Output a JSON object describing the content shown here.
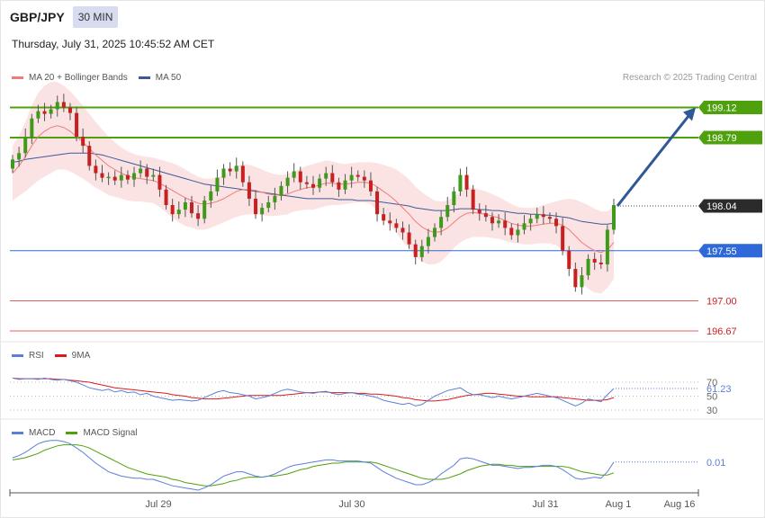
{
  "header": {
    "symbol": "GBP/JPY",
    "timeframe": "30 MIN",
    "datetime": "Thursday, July 31, 2025 10:45:52 AM CET",
    "credit": "Research © 2025 Trading Central"
  },
  "colors": {
    "ma20": "#f07b7b",
    "bands": "#fcdede",
    "ma50": "#3c5a9a",
    "resistance": "#4ea00c",
    "support_blue": "#2f68d8",
    "support_red": "#e06060",
    "current": "#333333",
    "arrow": "#2f5896",
    "rsi": "#5b7fd8",
    "rsi_ma": "#dd1a1a",
    "macd": "#5b7fd8",
    "macd_signal": "#4ea00c",
    "candle_up": "#3e9a1a",
    "candle_down": "#c62020"
  },
  "chart_data": [
    {
      "type": "candlestick",
      "legend": [
        {
          "name": "MA 20 + Bollinger Bands",
          "color": "#f07b7b"
        },
        {
          "name": "MA 50",
          "color": "#3c5a9a"
        }
      ],
      "ylim": [
        196.5,
        199.6
      ],
      "x_ticks": [
        "Jul 29",
        "Jul 30",
        "Jul 31",
        "Aug 1",
        "Aug 16"
      ],
      "levels": [
        {
          "value": 199.12,
          "label": "199.12",
          "kind": "resistance"
        },
        {
          "value": 198.79,
          "label": "198.79",
          "kind": "resistance"
        },
        {
          "value": 198.04,
          "label": "198.04",
          "kind": "current"
        },
        {
          "value": 197.55,
          "label": "197.55",
          "kind": "support_blue"
        },
        {
          "value": 197.0,
          "label": "197.00",
          "kind": "support_red"
        },
        {
          "value": 196.67,
          "label": "196.67",
          "kind": "support_red"
        }
      ],
      "close": [
        198.55,
        198.62,
        198.8,
        199.0,
        199.08,
        199.05,
        199.1,
        199.18,
        199.12,
        199.06,
        198.8,
        198.7,
        198.48,
        198.4,
        198.35,
        198.36,
        198.32,
        198.38,
        198.33,
        198.4,
        198.45,
        198.36,
        198.38,
        198.22,
        198.05,
        197.95,
        198.0,
        198.08,
        197.96,
        197.9,
        198.1,
        198.2,
        198.35,
        198.45,
        198.42,
        198.48,
        198.3,
        198.12,
        197.95,
        198.02,
        198.08,
        198.15,
        198.26,
        198.35,
        198.42,
        198.3,
        198.28,
        198.24,
        198.34,
        198.4,
        198.3,
        198.22,
        198.32,
        198.38,
        198.36,
        198.32,
        198.2,
        197.95,
        197.88,
        197.85,
        197.8,
        197.75,
        197.62,
        197.48,
        197.6,
        197.7,
        197.8,
        197.92,
        198.05,
        198.2,
        198.38,
        198.22,
        198.0,
        197.96,
        197.92,
        197.85,
        197.88,
        197.8,
        197.72,
        197.78,
        197.85,
        197.9,
        197.95,
        197.92,
        197.9,
        197.82,
        197.55,
        197.35,
        197.15,
        197.28,
        197.46,
        197.42,
        197.4,
        197.78,
        198.05
      ],
      "open": [
        198.45,
        198.55,
        198.62,
        198.8,
        199.0,
        199.08,
        199.05,
        199.1,
        199.18,
        199.12,
        199.06,
        198.8,
        198.7,
        198.48,
        198.4,
        198.35,
        198.36,
        198.32,
        198.38,
        198.33,
        198.4,
        198.45,
        198.36,
        198.38,
        198.22,
        198.05,
        197.95,
        198.0,
        198.08,
        197.96,
        197.9,
        198.1,
        198.2,
        198.35,
        198.45,
        198.42,
        198.48,
        198.3,
        198.12,
        197.95,
        198.02,
        198.08,
        198.15,
        198.26,
        198.35,
        198.42,
        198.3,
        198.28,
        198.24,
        198.34,
        198.4,
        198.3,
        198.22,
        198.32,
        198.38,
        198.36,
        198.32,
        198.2,
        197.95,
        197.88,
        197.85,
        197.8,
        197.75,
        197.62,
        197.48,
        197.6,
        197.7,
        197.8,
        197.92,
        198.05,
        198.2,
        198.38,
        198.22,
        198.0,
        197.96,
        197.92,
        197.85,
        197.88,
        197.8,
        197.72,
        197.78,
        197.85,
        197.9,
        197.95,
        197.92,
        197.9,
        197.82,
        197.55,
        197.35,
        197.15,
        197.28,
        197.46,
        197.42,
        197.4,
        197.78
      ],
      "ma20": [
        198.4,
        198.48,
        198.58,
        198.7,
        198.8,
        198.86,
        198.9,
        198.92,
        198.9,
        198.86,
        198.8,
        198.74,
        198.67,
        198.6,
        198.54,
        198.48,
        198.44,
        198.4,
        198.37,
        198.35,
        198.34,
        198.33,
        198.32,
        198.29,
        198.25,
        198.21,
        198.17,
        198.13,
        198.1,
        198.07,
        198.06,
        198.07,
        198.09,
        198.12,
        198.16,
        198.2,
        198.22,
        198.22,
        198.21,
        198.19,
        198.17,
        198.16,
        198.16,
        198.17,
        198.2,
        198.22,
        198.24,
        198.25,
        198.27,
        198.29,
        198.29,
        198.28,
        198.28,
        198.29,
        198.3,
        198.3,
        198.29,
        198.25,
        198.2,
        198.15,
        198.09,
        198.02,
        197.95,
        197.87,
        197.81,
        197.77,
        197.75,
        197.76,
        197.8,
        197.86,
        197.92,
        197.96,
        197.97,
        197.96,
        197.95,
        197.93,
        197.91,
        197.88,
        197.85,
        197.83,
        197.82,
        197.82,
        197.83,
        197.84,
        197.85,
        197.85,
        197.83,
        197.78,
        197.71,
        197.64,
        197.59,
        197.55,
        197.53,
        197.56,
        197.64
      ],
      "ma50": [
        198.52,
        198.53,
        198.55,
        198.56,
        198.57,
        198.58,
        198.59,
        198.6,
        198.61,
        198.62,
        198.62,
        198.62,
        198.62,
        198.61,
        198.6,
        198.58,
        198.56,
        198.54,
        198.52,
        198.5,
        198.48,
        198.46,
        198.44,
        198.42,
        198.4,
        198.38,
        198.36,
        198.34,
        198.32,
        198.3,
        198.28,
        198.27,
        198.26,
        198.25,
        198.24,
        198.23,
        198.22,
        198.21,
        198.2,
        198.19,
        198.18,
        198.17,
        198.16,
        198.15,
        198.14,
        198.13,
        198.12,
        198.12,
        198.12,
        198.12,
        198.12,
        198.11,
        198.11,
        198.11,
        198.1,
        198.1,
        198.1,
        198.09,
        198.08,
        198.07,
        198.06,
        198.05,
        198.04,
        198.02,
        198.01,
        198.0,
        197.99,
        197.99,
        197.99,
        198.0,
        198.01,
        198.01,
        198.01,
        198.0,
        198.0,
        197.99,
        197.99,
        197.98,
        197.97,
        197.96,
        197.96,
        197.95,
        197.95,
        197.94,
        197.94,
        197.93,
        197.92,
        197.91,
        197.89,
        197.87,
        197.86,
        197.85,
        197.84,
        197.84,
        197.85
      ],
      "band_width": [
        0.3,
        0.33,
        0.38,
        0.44,
        0.48,
        0.5,
        0.5,
        0.48,
        0.46,
        0.44,
        0.42,
        0.4,
        0.38,
        0.36,
        0.34,
        0.32,
        0.3,
        0.28,
        0.27,
        0.26,
        0.25,
        0.25,
        0.25,
        0.26,
        0.28,
        0.3,
        0.31,
        0.31,
        0.3,
        0.29,
        0.28,
        0.27,
        0.26,
        0.26,
        0.27,
        0.28,
        0.28,
        0.27,
        0.26,
        0.25,
        0.24,
        0.23,
        0.22,
        0.22,
        0.22,
        0.23,
        0.24,
        0.25,
        0.25,
        0.25,
        0.24,
        0.23,
        0.22,
        0.22,
        0.22,
        0.22,
        0.23,
        0.26,
        0.29,
        0.32,
        0.35,
        0.37,
        0.38,
        0.38,
        0.38,
        0.37,
        0.35,
        0.33,
        0.3,
        0.28,
        0.28,
        0.28,
        0.27,
        0.26,
        0.25,
        0.24,
        0.23,
        0.22,
        0.21,
        0.2,
        0.2,
        0.2,
        0.2,
        0.21,
        0.22,
        0.24,
        0.28,
        0.34,
        0.4,
        0.44,
        0.46,
        0.46,
        0.45,
        0.42,
        0.4
      ]
    },
    {
      "type": "line",
      "name": "RSI",
      "legend": [
        {
          "name": "RSI",
          "color": "#5b7fd8"
        },
        {
          "name": "9MA",
          "color": "#dd1a1a"
        }
      ],
      "ylim": [
        20,
        90
      ],
      "y_ticks": [
        70,
        50,
        30
      ],
      "last_value_label": "61.23",
      "rsi": [
        76,
        74,
        75,
        75,
        74,
        76,
        74,
        73,
        74,
        72,
        70,
        66,
        62,
        60,
        58,
        60,
        56,
        58,
        55,
        56,
        52,
        54,
        50,
        48,
        46,
        44,
        45,
        44,
        43,
        44,
        48,
        52,
        56,
        58,
        55,
        54,
        52,
        50,
        46,
        48,
        50,
        54,
        58,
        60,
        58,
        56,
        55,
        54,
        56,
        57,
        54,
        52,
        54,
        55,
        53,
        52,
        50,
        48,
        44,
        42,
        40,
        38,
        40,
        36,
        38,
        44,
        50,
        54,
        58,
        60,
        62,
        56,
        52,
        52,
        50,
        48,
        50,
        48,
        46,
        48,
        50,
        52,
        54,
        52,
        50,
        48,
        44,
        40,
        36,
        40,
        46,
        44,
        42,
        52,
        61
      ],
      "rsi_ma": [
        76,
        75,
        75,
        75,
        75,
        75,
        75,
        74,
        74,
        73,
        72,
        71,
        70,
        68,
        66,
        64,
        62,
        61,
        60,
        59,
        58,
        57,
        56,
        55,
        54,
        52,
        51,
        50,
        48,
        47,
        46,
        46,
        46,
        47,
        48,
        49,
        50,
        51,
        51,
        51,
        51,
        51,
        51,
        52,
        53,
        54,
        55,
        55,
        56,
        56,
        55,
        55,
        55,
        55,
        54,
        54,
        53,
        53,
        52,
        51,
        50,
        48,
        47,
        45,
        44,
        43,
        43,
        44,
        45,
        47,
        49,
        51,
        52,
        53,
        54,
        54,
        53,
        52,
        51,
        50,
        50,
        49,
        49,
        49,
        49,
        49,
        48,
        47,
        46,
        45,
        44,
        44,
        44,
        45,
        48
      ]
    },
    {
      "type": "line",
      "name": "MACD",
      "legend": [
        {
          "name": "MACD",
          "color": "#5b7fd8"
        },
        {
          "name": "MACD Signal",
          "color": "#4ea00c"
        }
      ],
      "last_value_label": "0.01",
      "macd": [
        0.05,
        0.07,
        0.1,
        0.14,
        0.18,
        0.2,
        0.21,
        0.21,
        0.2,
        0.18,
        0.14,
        0.1,
        0.05,
        0.0,
        -0.04,
        -0.08,
        -0.1,
        -0.12,
        -0.13,
        -0.14,
        -0.14,
        -0.15,
        -0.15,
        -0.17,
        -0.19,
        -0.21,
        -0.22,
        -0.23,
        -0.24,
        -0.25,
        -0.23,
        -0.2,
        -0.16,
        -0.12,
        -0.1,
        -0.08,
        -0.08,
        -0.1,
        -0.12,
        -0.13,
        -0.12,
        -0.1,
        -0.07,
        -0.04,
        -0.02,
        -0.01,
        0.0,
        0.01,
        0.02,
        0.03,
        0.03,
        0.02,
        0.02,
        0.02,
        0.02,
        0.01,
        0.0,
        -0.04,
        -0.08,
        -0.11,
        -0.14,
        -0.16,
        -0.18,
        -0.2,
        -0.2,
        -0.18,
        -0.15,
        -0.1,
        -0.06,
        -0.02,
        0.04,
        0.05,
        0.04,
        0.02,
        0.0,
        -0.02,
        -0.02,
        -0.03,
        -0.04,
        -0.05,
        -0.04,
        -0.04,
        -0.03,
        -0.02,
        -0.02,
        -0.03,
        -0.06,
        -0.1,
        -0.14,
        -0.15,
        -0.14,
        -0.13,
        -0.14,
        -0.08,
        0.01
      ],
      "macd_signal": [
        0.03,
        0.04,
        0.05,
        0.07,
        0.09,
        0.12,
        0.14,
        0.16,
        0.17,
        0.17,
        0.17,
        0.16,
        0.14,
        0.11,
        0.08,
        0.05,
        0.02,
        -0.01,
        -0.04,
        -0.06,
        -0.08,
        -0.1,
        -0.11,
        -0.12,
        -0.13,
        -0.15,
        -0.16,
        -0.18,
        -0.19,
        -0.2,
        -0.21,
        -0.21,
        -0.2,
        -0.19,
        -0.17,
        -0.16,
        -0.14,
        -0.13,
        -0.13,
        -0.13,
        -0.12,
        -0.12,
        -0.11,
        -0.1,
        -0.08,
        -0.06,
        -0.05,
        -0.03,
        -0.02,
        -0.01,
        0.0,
        0.0,
        0.01,
        0.01,
        0.01,
        0.01,
        0.01,
        0.0,
        -0.02,
        -0.04,
        -0.06,
        -0.08,
        -0.1,
        -0.12,
        -0.14,
        -0.15,
        -0.15,
        -0.15,
        -0.14,
        -0.12,
        -0.1,
        -0.07,
        -0.05,
        -0.03,
        -0.02,
        -0.01,
        -0.01,
        -0.02,
        -0.02,
        -0.03,
        -0.03,
        -0.03,
        -0.03,
        -0.03,
        -0.03,
        -0.03,
        -0.03,
        -0.04,
        -0.06,
        -0.08,
        -0.09,
        -0.1,
        -0.11,
        -0.11,
        -0.09
      ]
    }
  ]
}
